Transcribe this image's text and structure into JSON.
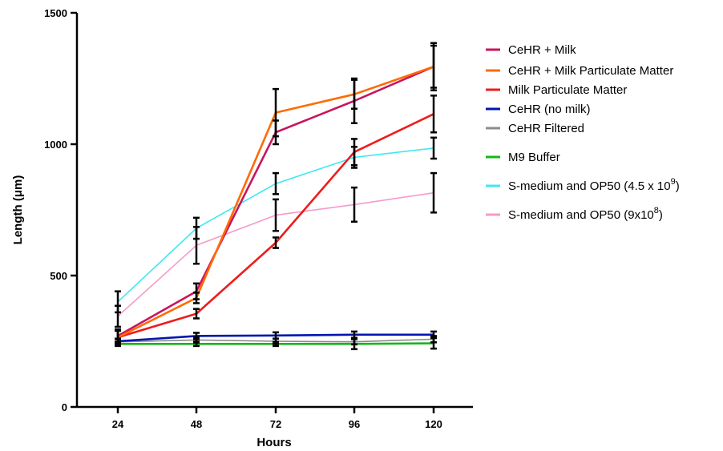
{
  "chart_data": {
    "type": "line",
    "xlabel": "Hours",
    "ylabel": "Length (μm)",
    "x": [
      24,
      48,
      72,
      96,
      120
    ],
    "x_ticks": [
      "24",
      "48",
      "72",
      "96",
      "120"
    ],
    "y_ticks": [
      "0",
      "500",
      "1000",
      "1500"
    ],
    "ylim": [
      0,
      1500
    ],
    "grid": false,
    "legend_position": "right",
    "series": [
      {
        "name": "CeHR + Milk",
        "label_base": "CeHR + Milk",
        "color": "#c8155f",
        "values": [
          270,
          440,
          1045,
          1165,
          1295
        ],
        "errors": [
          25,
          30,
          45,
          85,
          90
        ]
      },
      {
        "name": "CeHR + Milk Particulate Matter",
        "label_base": "CeHR + Milk Particulate Matter",
        "color": "#ff6a00",
        "values": [
          265,
          415,
          1120,
          1190,
          1295
        ],
        "errors": [
          25,
          20,
          90,
          55,
          80
        ]
      },
      {
        "name": "Milk Particulate Matter",
        "label_base": "Milk Particulate Matter",
        "color": "#ee1c1c",
        "values": [
          265,
          355,
          625,
          970,
          1115
        ],
        "errors": [
          25,
          18,
          20,
          50,
          70
        ]
      },
      {
        "name": "CeHR (no milk)",
        "label_base": "CeHR (no milk)",
        "color": "#0015b0",
        "values": [
          250,
          270,
          272,
          275,
          275
        ],
        "errors": [
          10,
          12,
          12,
          12,
          12
        ]
      },
      {
        "name": "CeHR Filtered",
        "label_base": "CeHR Filtered",
        "color": "#8c8c8c",
        "values": [
          248,
          255,
          250,
          248,
          258
        ],
        "errors": [
          10,
          10,
          10,
          10,
          12
        ]
      },
      {
        "name": "M9 Buffer",
        "label_base": "M9 Buffer",
        "color": "#14b814",
        "values": [
          240,
          240,
          240,
          240,
          242
        ],
        "errors": [
          8,
          8,
          8,
          20,
          20
        ]
      },
      {
        "name": "S-medium and OP50 (4.5 x 10^9)",
        "label_base": "S-medium and OP50 (4.5 x 10",
        "label_sup": "9",
        "label_tail": ")",
        "color": "#3fe8f0",
        "values": [
          400,
          680,
          850,
          950,
          985
        ],
        "errors": [
          40,
          40,
          40,
          40,
          40
        ]
      },
      {
        "name": "S-medium and OP50 (9x10^8)",
        "label_base": "S-medium and OP50 (9x10",
        "label_sup": "8",
        "label_tail": ")",
        "color": "#f59ac8",
        "values": [
          345,
          615,
          730,
          770,
          815
        ],
        "errors": [
          40,
          70,
          60,
          65,
          75
        ]
      }
    ]
  }
}
